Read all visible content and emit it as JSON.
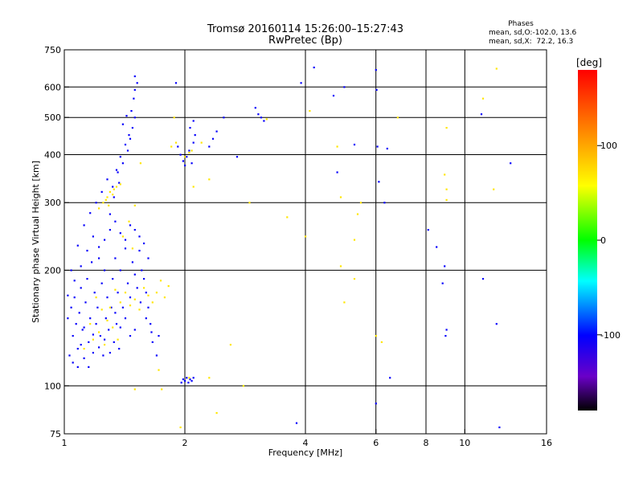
{
  "chart_data": {
    "type": "scatter",
    "title": "Tromsø 20160114 15:26:00–15:27:43",
    "subtitle": "RwPretec (Bp)",
    "xlabel": "Frequency [MHz]",
    "ylabel": "Stationary phase Virtual Height [km]",
    "x_scale": "log",
    "y_scale": "log",
    "xlim": [
      1,
      16
    ],
    "ylim": [
      75,
      750
    ],
    "x_ticks": [
      1,
      2,
      4,
      6,
      8,
      10,
      16
    ],
    "x_tick_labels": [
      "1",
      "2",
      "4",
      "6",
      "8",
      "10",
      "16"
    ],
    "x_grid": [
      2,
      4,
      6,
      8,
      10
    ],
    "y_ticks": [
      75,
      100,
      200,
      300,
      400,
      500,
      600,
      750
    ],
    "y_tick_labels": [
      "75",
      "100",
      "200",
      "300",
      "400",
      "500",
      "600",
      "750"
    ],
    "y_grid": [
      100,
      200,
      300,
      400,
      500,
      600
    ],
    "grid": true,
    "info": {
      "heading": "Phases",
      "line1": "mean, sd,O:-102.0, 13.6",
      "line2": "mean, sd,X:  72.2, 16.3"
    },
    "colorbar": {
      "label": "[deg]",
      "range": [
        -180,
        180
      ],
      "ticks": [
        100,
        0,
        -100
      ],
      "tick_labels": [
        "100",
        "0",
        "-100"
      ]
    },
    "series": [
      {
        "name": "O",
        "color_value": -102,
        "points": [
          [
            1.02,
            150
          ],
          [
            1.04,
            160
          ],
          [
            1.05,
            135
          ],
          [
            1.06,
            170
          ],
          [
            1.07,
            145
          ],
          [
            1.08,
            125
          ],
          [
            1.09,
            155
          ],
          [
            1.1,
            180
          ],
          [
            1.11,
            140
          ],
          [
            1.12,
            118
          ],
          [
            1.13,
            165
          ],
          [
            1.14,
            190
          ],
          [
            1.15,
            130
          ],
          [
            1.16,
            150
          ],
          [
            1.17,
            210
          ],
          [
            1.18,
            122
          ],
          [
            1.19,
            175
          ],
          [
            1.2,
            145
          ],
          [
            1.21,
            160
          ],
          [
            1.22,
            230
          ],
          [
            1.23,
            135
          ],
          [
            1.24,
            185
          ],
          [
            1.25,
            120
          ],
          [
            1.26,
            200
          ],
          [
            1.27,
            150
          ],
          [
            1.28,
            170
          ],
          [
            1.29,
            140
          ],
          [
            1.3,
            255
          ],
          [
            1.31,
            160
          ],
          [
            1.32,
            190
          ],
          [
            1.33,
            130
          ],
          [
            1.34,
            215
          ],
          [
            1.35,
            145
          ],
          [
            1.36,
            175
          ],
          [
            1.37,
            125
          ],
          [
            1.38,
            200
          ],
          [
            1.4,
            160
          ],
          [
            1.42,
            240
          ],
          [
            1.44,
            185
          ],
          [
            1.46,
            170
          ],
          [
            1.48,
            210
          ],
          [
            1.5,
            195
          ],
          [
            1.52,
            180
          ],
          [
            1.54,
            225
          ],
          [
            1.56,
            200
          ],
          [
            1.58,
            190
          ],
          [
            1.6,
            175
          ],
          [
            1.62,
            160
          ],
          [
            1.64,
            145
          ],
          [
            1.66,
            130
          ],
          [
            1.03,
            120
          ],
          [
            1.05,
            115
          ],
          [
            1.08,
            112
          ],
          [
            1.1,
            128
          ],
          [
            1.12,
            142
          ],
          [
            1.15,
            112
          ],
          [
            1.18,
            136
          ],
          [
            1.22,
            126
          ],
          [
            1.26,
            132
          ],
          [
            1.3,
            122
          ],
          [
            1.34,
            155
          ],
          [
            1.38,
            142
          ],
          [
            1.42,
            150
          ],
          [
            1.46,
            135
          ],
          [
            1.5,
            140
          ],
          [
            1.55,
            165
          ],
          [
            1.6,
            150
          ],
          [
            1.65,
            138
          ],
          [
            1.02,
            172
          ],
          [
            1.06,
            188
          ],
          [
            1.1,
            205
          ],
          [
            1.14,
            225
          ],
          [
            1.18,
            245
          ],
          [
            1.22,
            215
          ],
          [
            1.26,
            240
          ],
          [
            1.3,
            280
          ],
          [
            1.34,
            268
          ],
          [
            1.38,
            250
          ],
          [
            1.42,
            228
          ],
          [
            1.46,
            262
          ],
          [
            1.5,
            255
          ],
          [
            1.54,
            245
          ],
          [
            1.58,
            235
          ],
          [
            1.62,
            215
          ],
          [
            1.04,
            200
          ],
          [
            1.08,
            232
          ],
          [
            1.12,
            262
          ],
          [
            1.16,
            282
          ],
          [
            1.2,
            300
          ],
          [
            1.24,
            320
          ],
          [
            1.28,
            345
          ],
          [
            1.32,
            330
          ],
          [
            1.36,
            360
          ],
          [
            1.4,
            380
          ],
          [
            1.44,
            410
          ],
          [
            1.46,
            440
          ],
          [
            1.48,
            470
          ],
          [
            1.5,
            500
          ],
          [
            1.47,
            520
          ],
          [
            1.49,
            560
          ],
          [
            1.5,
            590
          ],
          [
            1.52,
            615
          ],
          [
            1.5,
            640
          ],
          [
            1.38,
            395
          ],
          [
            1.42,
            425
          ],
          [
            1.45,
            450
          ],
          [
            1.4,
            480
          ],
          [
            1.43,
            505
          ],
          [
            1.35,
            365
          ],
          [
            1.33,
            310
          ],
          [
            1.37,
            338
          ],
          [
            1.96,
            102
          ],
          [
            1.98,
            104
          ],
          [
            2.0,
            103
          ],
          [
            2.02,
            105
          ],
          [
            2.04,
            102
          ],
          [
            2.06,
            104
          ],
          [
            2.08,
            103
          ],
          [
            2.1,
            105
          ],
          [
            1.92,
            420
          ],
          [
            1.95,
            400
          ],
          [
            1.98,
            385
          ],
          [
            2.0,
            375
          ],
          [
            2.02,
            395
          ],
          [
            2.05,
            410
          ],
          [
            2.08,
            380
          ],
          [
            2.1,
            430
          ],
          [
            2.12,
            450
          ],
          [
            2.06,
            470
          ],
          [
            2.1,
            490
          ],
          [
            1.9,
            615
          ],
          [
            2.3,
            420
          ],
          [
            2.35,
            440
          ],
          [
            2.4,
            460
          ],
          [
            2.5,
            500
          ],
          [
            2.7,
            395
          ],
          [
            3.0,
            530
          ],
          [
            3.05,
            510
          ],
          [
            3.1,
            500
          ],
          [
            3.15,
            490
          ],
          [
            3.9,
            615
          ],
          [
            4.2,
            675
          ],
          [
            4.7,
            570
          ],
          [
            4.8,
            360
          ],
          [
            5.0,
            600
          ],
          [
            5.3,
            425
          ],
          [
            6.0,
            665
          ],
          [
            6.02,
            590
          ],
          [
            6.05,
            420
          ],
          [
            6.1,
            340
          ],
          [
            6.3,
            300
          ],
          [
            6.4,
            415
          ],
          [
            6.5,
            105
          ],
          [
            6.0,
            90
          ],
          [
            8.1,
            255
          ],
          [
            8.5,
            230
          ],
          [
            8.8,
            185
          ],
          [
            8.9,
            205
          ],
          [
            8.95,
            135
          ],
          [
            9.0,
            140
          ],
          [
            11.0,
            510
          ],
          [
            11.1,
            190
          ],
          [
            12.0,
            145
          ],
          [
            13.0,
            380
          ],
          [
            12.2,
            78
          ],
          [
            3.8,
            80
          ],
          [
            1.7,
            120
          ],
          [
            1.72,
            135
          ]
        ]
      },
      {
        "name": "X",
        "color_value": 72,
        "points": [
          [
            1.25,
            300
          ],
          [
            1.28,
            310
          ],
          [
            1.3,
            320
          ],
          [
            1.32,
            315
          ],
          [
            1.35,
            330
          ],
          [
            1.22,
            290
          ],
          [
            1.27,
            305
          ],
          [
            1.33,
            325
          ],
          [
            1.38,
            335
          ],
          [
            1.29,
            295
          ],
          [
            1.2,
            170
          ],
          [
            1.24,
            158
          ],
          [
            1.28,
            148
          ],
          [
            1.32,
            142
          ],
          [
            1.36,
            132
          ],
          [
            1.22,
            138
          ],
          [
            1.26,
            128
          ],
          [
            1.3,
            160
          ],
          [
            1.34,
            178
          ],
          [
            1.38,
            165
          ],
          [
            1.42,
            175
          ],
          [
            1.46,
            162
          ],
          [
            1.5,
            168
          ],
          [
            1.54,
            158
          ],
          [
            1.58,
            180
          ],
          [
            1.62,
            172
          ],
          [
            1.66,
            165
          ],
          [
            1.7,
            175
          ],
          [
            1.74,
            188
          ],
          [
            1.78,
            170
          ],
          [
            1.82,
            182
          ],
          [
            1.18,
            132
          ],
          [
            1.16,
            145
          ],
          [
            1.12,
            125
          ],
          [
            1.4,
            245
          ],
          [
            1.45,
            268
          ],
          [
            1.48,
            228
          ],
          [
            1.5,
            295
          ],
          [
            1.55,
            380
          ],
          [
            1.85,
            420
          ],
          [
            1.9,
            430
          ],
          [
            2.0,
            395
          ],
          [
            2.05,
            405
          ],
          [
            2.08,
            410
          ],
          [
            1.88,
            500
          ],
          [
            2.2,
            430
          ],
          [
            2.3,
            345
          ],
          [
            2.1,
            330
          ],
          [
            1.72,
            110
          ],
          [
            1.75,
            98
          ],
          [
            1.5,
            98
          ],
          [
            2.05,
            105
          ],
          [
            2.3,
            105
          ],
          [
            2.4,
            85
          ],
          [
            2.6,
            128
          ],
          [
            2.8,
            100
          ],
          [
            2.9,
            300
          ],
          [
            3.2,
            495
          ],
          [
            3.6,
            275
          ],
          [
            4.0,
            245
          ],
          [
            4.1,
            520
          ],
          [
            4.8,
            420
          ],
          [
            4.9,
            310
          ],
          [
            4.9,
            205
          ],
          [
            5.0,
            165
          ],
          [
            5.3,
            240
          ],
          [
            5.4,
            280
          ],
          [
            5.5,
            300
          ],
          [
            5.3,
            190
          ],
          [
            6.2,
            130
          ],
          [
            6.8,
            500
          ],
          [
            9.0,
            470
          ],
          [
            8.9,
            355
          ],
          [
            9.0,
            305
          ],
          [
            9.0,
            325
          ],
          [
            11.1,
            560
          ],
          [
            11.8,
            325
          ],
          [
            12.0,
            670
          ],
          [
            1.95,
            78
          ],
          [
            6.0,
            135
          ]
        ]
      }
    ]
  }
}
